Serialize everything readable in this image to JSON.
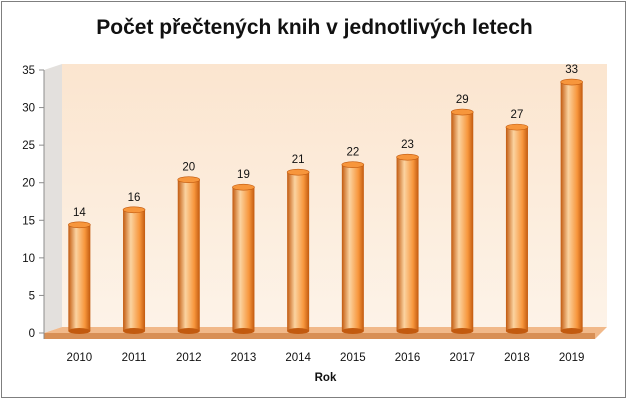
{
  "chart_data": {
    "type": "bar",
    "title": "Počet přečtených knih v jednotlivých letech",
    "xlabel": "Rok",
    "ylabel": "",
    "categories": [
      "2010",
      "2011",
      "2012",
      "2013",
      "2014",
      "2015",
      "2016",
      "2017",
      "2018",
      "2019"
    ],
    "values": [
      14,
      16,
      20,
      19,
      21,
      22,
      23,
      29,
      27,
      33
    ],
    "ylim": [
      0,
      35
    ],
    "yticks": [
      0,
      5,
      10,
      15,
      20,
      25,
      30,
      35
    ],
    "grid": false,
    "legend": "none",
    "style": "3d-cylinder",
    "colors": {
      "bar_light": "#fbd3a0",
      "bar_mid": "#f7963c",
      "bar_dark": "#c25a0f",
      "wall_top": "#fbe5cf",
      "wall_bottom": "#fdf3e8",
      "floor": "#f1b98a"
    }
  }
}
